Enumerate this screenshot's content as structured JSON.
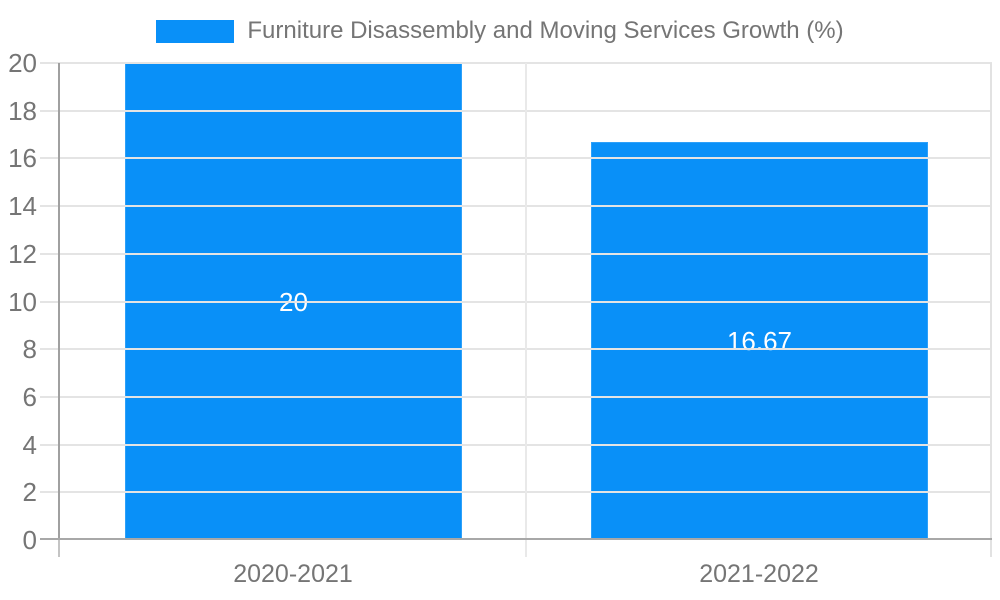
{
  "chart_data": {
    "type": "bar",
    "title": "",
    "legend": {
      "label": "Furniture Disassembly and Moving Services Growth (%)",
      "position": "top"
    },
    "categories": [
      "2020-2021",
      "2021-2022"
    ],
    "values": [
      20,
      16.67
    ],
    "value_labels": [
      "20",
      "16.67"
    ],
    "xlabel": "",
    "ylabel": "",
    "ylim": [
      0,
      20
    ],
    "yticks": [
      0,
      2,
      4,
      6,
      8,
      10,
      12,
      14,
      16,
      18,
      20
    ],
    "grid": true,
    "bar_width_fraction": 0.723,
    "colors": {
      "bar": "#0990f8",
      "gridline": "#e4e4e4",
      "category_divider": "#e9e9e9",
      "plot_right_border": "#e2e2e2",
      "axis_y": "#a0a0a0",
      "axis_x": "#a8a8a8",
      "axis_tick_below": "#c4c4c4",
      "tick_text": "#757575",
      "legend_text": "#757575",
      "value_text": "#ffffff"
    }
  }
}
